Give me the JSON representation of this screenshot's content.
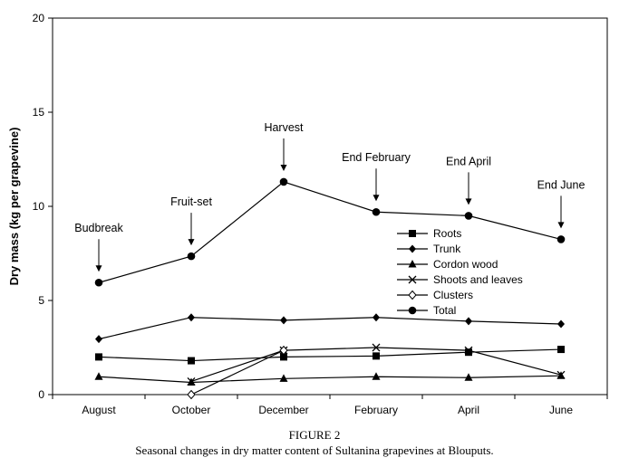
{
  "chart_data": {
    "type": "line",
    "ylabel": "Dry mass (kg per grapevine)",
    "xlabel": "",
    "ylim": [
      0,
      20
    ],
    "yticks": [
      0,
      5,
      10,
      15,
      20
    ],
    "categories": [
      "August",
      "October",
      "December",
      "February",
      "April",
      "June"
    ],
    "series": [
      {
        "name": "Roots",
        "marker": "square",
        "values": [
          2.0,
          1.8,
          2.0,
          2.05,
          2.25,
          2.4
        ]
      },
      {
        "name": "Trunk",
        "marker": "diamond",
        "values": [
          2.95,
          4.1,
          3.95,
          4.1,
          3.9,
          3.75
        ]
      },
      {
        "name": "Cordon wood",
        "marker": "triangle",
        "values": [
          0.95,
          0.65,
          0.85,
          0.95,
          0.9,
          1.0
        ]
      },
      {
        "name": "Shoots and leaves",
        "marker": "x",
        "values": [
          null,
          0.7,
          2.35,
          2.5,
          2.35,
          1.05
        ]
      },
      {
        "name": "Clusters",
        "marker": "open-diamond",
        "values": [
          null,
          0.0,
          2.35,
          null,
          null,
          null
        ]
      },
      {
        "name": "Total",
        "marker": "circle",
        "values": [
          5.95,
          7.35,
          11.3,
          9.7,
          9.5,
          8.25
        ]
      }
    ],
    "annotations": [
      {
        "text": "Budbreak",
        "category": "August",
        "y": 5.95
      },
      {
        "text": "Fruit-set",
        "category": "October",
        "y": 7.35
      },
      {
        "text": "Harvest",
        "category": "December",
        "y": 11.3
      },
      {
        "text": "End February",
        "category": "February",
        "y": 9.7
      },
      {
        "text": "End April",
        "category": "April",
        "y": 9.5
      },
      {
        "text": "End June",
        "category": "June",
        "y": 8.25
      }
    ],
    "legend_position": "center-right",
    "grid": false
  },
  "caption": {
    "figure_label": "FIGURE 2",
    "text": "Seasonal changes in dry matter content of Sultanina grapevines at Blouputs."
  }
}
